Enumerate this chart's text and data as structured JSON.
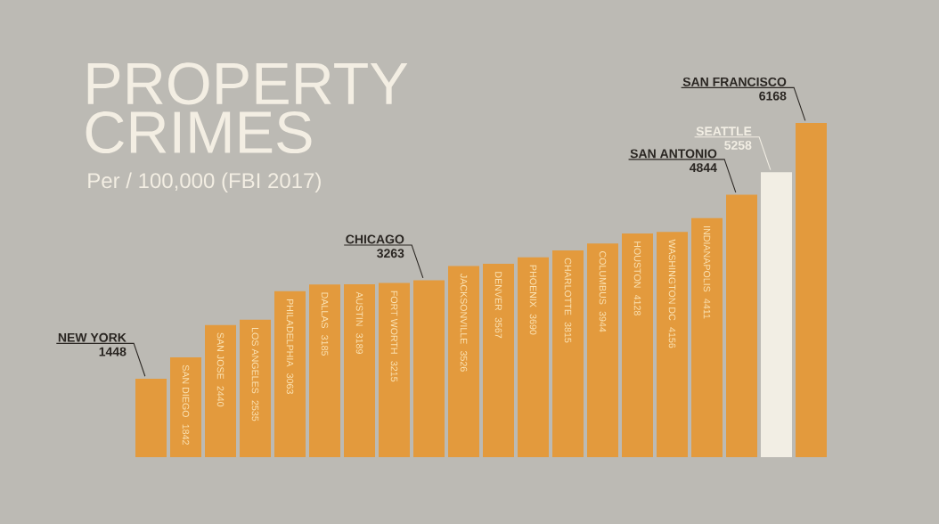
{
  "chart_data": {
    "type": "bar",
    "title": "PROPERTY CRIMES",
    "subtitle": "Per / 100,000  (FBI 2017)",
    "categories": [
      null,
      "SAN DIEGO",
      "SAN JOSE",
      "LOS ANGELES",
      "PHILADELPHIA",
      "DALLAS",
      "AUSTIN",
      "FORT WORTH",
      null,
      "JACKSONVILLE",
      "DENVER",
      "PHOENIX",
      "CHARLOTTE",
      "COLUMBUS",
      "HOUSTON",
      "WASHINGTON DC",
      "INDIANAPOLIS",
      null,
      null,
      null
    ],
    "values": [
      1448,
      1842,
      2440,
      2535,
      3063,
      3185,
      3189,
      3215,
      3263,
      3526,
      3567,
      3690,
      3815,
      3944,
      4128,
      4156,
      4411,
      4844,
      5258,
      6168
    ],
    "colors": [
      "#e39a3d",
      "#e39a3d",
      "#e39a3d",
      "#e39a3d",
      "#e39a3d",
      "#e39a3d",
      "#e39a3d",
      "#e39a3d",
      "#e39a3d",
      "#e39a3d",
      "#e39a3d",
      "#e39a3d",
      "#e39a3d",
      "#e39a3d",
      "#e39a3d",
      "#e39a3d",
      "#e39a3d",
      "#e39a3d",
      "#f2eee4",
      "#e39a3d"
    ],
    "annotations": [
      "NEW YORK",
      "CHICAGO",
      "SAN ANTONIO",
      "SEATTLE",
      "SAN FRANCISCO"
    ],
    "data_labels": true
  }
}
